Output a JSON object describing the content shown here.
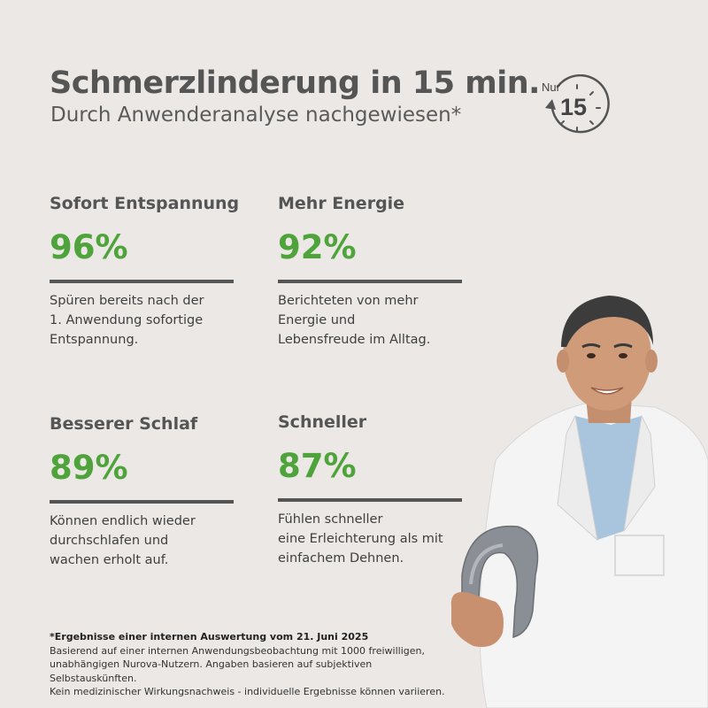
{
  "header": {
    "title": "Schmerzlinderung in 15 min.",
    "subtitle": "Durch Anwenderanalyse nachgewiesen*"
  },
  "badge": {
    "prefix": "Nur",
    "number": "15",
    "icon": "stopwatch-icon"
  },
  "stats": [
    {
      "heading": "Sofort Entspannung",
      "value": "96%",
      "lines": [
        "Spüren bereits nach der",
        "1. Anwendung sofortige",
        "Entspannung."
      ]
    },
    {
      "heading": "Mehr Energie",
      "value": "92%",
      "lines": [
        "Berichteten von mehr",
        "Energie und",
        "Lebensfreude im Alltag."
      ]
    },
    {
      "heading": "Besserer Schlaf",
      "value": "89%",
      "lines": [
        "Können endlich wieder",
        "durchschlafen und",
        "wachen erholt auf."
      ]
    },
    {
      "heading": "Schneller",
      "value": "87%",
      "lines": [
        "Fühlen schneller",
        "eine Erleichterung als mit",
        "einfachem Dehnen."
      ]
    }
  ],
  "footnote": {
    "heading": "*Ergebnisse einer internen Auswertung vom 21. Juni 2025",
    "lines": [
      "Basierend auf einer internen Anwendungsbeobachtung mit 1000 freiwilligen,",
      "unabhängigen Nurova-Nutzern. Angaben basieren auf subjektiven",
      "Selbstauskünften.",
      "Kein medizinischer Wirkungsnachweis - individuelle Ergebnisse können variieren."
    ]
  },
  "colors": {
    "background": "#ebe8e5",
    "accent_green": "#4ea33a",
    "text_dark": "#555555"
  },
  "image": {
    "subject": "doctor-holding-neck-massager"
  }
}
